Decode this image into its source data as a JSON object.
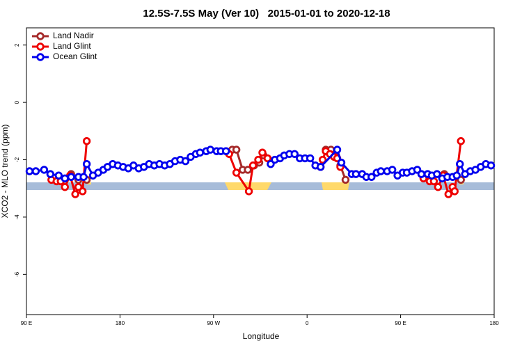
{
  "chart_data": {
    "type": "line",
    "title": "12.5S-7.5S May (Ver 10)   2015-01-01 to 2020-12-18",
    "x_label": "Longitude",
    "y_label": "XCO2 - MLO trend (ppm)",
    "xlim": [
      90,
      540
    ],
    "ylim": [
      -7.4,
      2.6
    ],
    "xticks": [
      {
        "value": 90,
        "label": "90 E"
      },
      180,
      {
        "value": 270,
        "label": "90 W"
      },
      {
        "value": 360,
        "label": "0"
      },
      {
        "value": 450,
        "label": "90 E"
      },
      {
        "value": 540,
        "label": "180"
      }
    ],
    "yticks": [
      2,
      0,
      -2,
      -4,
      -6
    ],
    "legend": "top-left",
    "series": [
      {
        "name": "Land Nadir",
        "color": "#a52a2a",
        "x": [
          133,
          140,
          148,
          null,
          288,
          292,
          298,
          303,
          309,
          314,
          318,
          null,
          378,
          383,
          387,
          392,
          397,
          null,
          492,
          508
        ],
        "values": [
          -2.5,
          -2.7,
          -2.7,
          null,
          -1.65,
          -1.65,
          -2.35,
          -2.35,
          -2.2,
          -2.1,
          -1.85,
          null,
          -1.65,
          -1.65,
          -1.85,
          -2.2,
          -2.7,
          null,
          -2.5,
          -2.7
        ]
      },
      {
        "name": "Land Glint",
        "color": "#ee0000",
        "x": [
          114,
          119,
          123,
          127,
          132,
          137,
          140,
          144,
          148,
          null,
          285,
          292,
          304,
          308,
          313,
          317,
          322,
          null,
          373,
          375,
          378,
          382,
          386,
          389,
          392,
          null,
          472,
          478,
          482,
          486,
          491,
          496,
          500,
          502,
          508
        ],
        "values": [
          -2.7,
          -2.75,
          -2.75,
          -2.95,
          -2.55,
          -3.2,
          -2.95,
          -3.1,
          -1.35,
          null,
          -1.8,
          -2.45,
          -3.1,
          -2.2,
          -2.0,
          -1.75,
          -1.95,
          null,
          -2.25,
          -2.0,
          -1.7,
          -1.8,
          -1.9,
          -1.95,
          -2.25,
          null,
          -2.65,
          -2.75,
          -2.75,
          -2.95,
          -2.55,
          -3.2,
          -2.95,
          -3.1,
          -1.35
        ]
      },
      {
        "name": "Ocean Glint",
        "color": "#0000ee",
        "x": [
          93,
          99,
          107,
          113,
          121,
          127,
          133,
          140,
          145,
          148,
          154,
          159,
          164,
          168,
          173,
          178,
          183,
          188,
          193,
          198,
          203,
          208,
          213,
          218,
          223,
          228,
          233,
          238,
          243,
          248,
          253,
          257,
          263,
          267,
          273,
          277,
          282,
          null,
          325,
          329,
          334,
          338,
          343,
          348,
          353,
          358,
          363,
          368,
          373,
          389,
          393,
          403,
          407,
          413,
          417,
          422,
          427,
          431,
          437,
          442,
          447,
          452,
          456,
          461,
          466,
          470,
          476,
          480,
          485,
          490,
          495,
          500,
          504,
          507,
          512,
          517,
          522,
          527,
          532,
          537
        ],
        "values": [
          -2.4,
          -2.4,
          -2.35,
          -2.5,
          -2.55,
          -2.65,
          -2.6,
          -2.6,
          -2.6,
          -2.15,
          -2.55,
          -2.45,
          -2.35,
          -2.25,
          -2.15,
          -2.2,
          -2.25,
          -2.3,
          -2.2,
          -2.3,
          -2.25,
          -2.15,
          -2.2,
          -2.15,
          -2.2,
          -2.15,
          -2.05,
          -2.0,
          -2.05,
          -1.9,
          -1.8,
          -1.75,
          -1.7,
          -1.65,
          -1.7,
          -1.7,
          -1.7,
          null,
          -2.15,
          -2.0,
          -1.95,
          -1.85,
          -1.8,
          -1.8,
          -1.95,
          -1.95,
          -1.95,
          -2.2,
          -2.25,
          -1.65,
          -2.1,
          -2.5,
          -2.5,
          -2.5,
          -2.6,
          -2.6,
          -2.45,
          -2.4,
          -2.4,
          -2.35,
          -2.55,
          -2.45,
          -2.45,
          -2.4,
          -2.35,
          -2.5,
          -2.5,
          -2.55,
          -2.5,
          -2.65,
          -2.6,
          -2.6,
          -2.55,
          -2.15,
          -2.5,
          -2.4,
          -2.35,
          -2.25,
          -2.15,
          -2.2
        ]
      }
    ]
  }
}
